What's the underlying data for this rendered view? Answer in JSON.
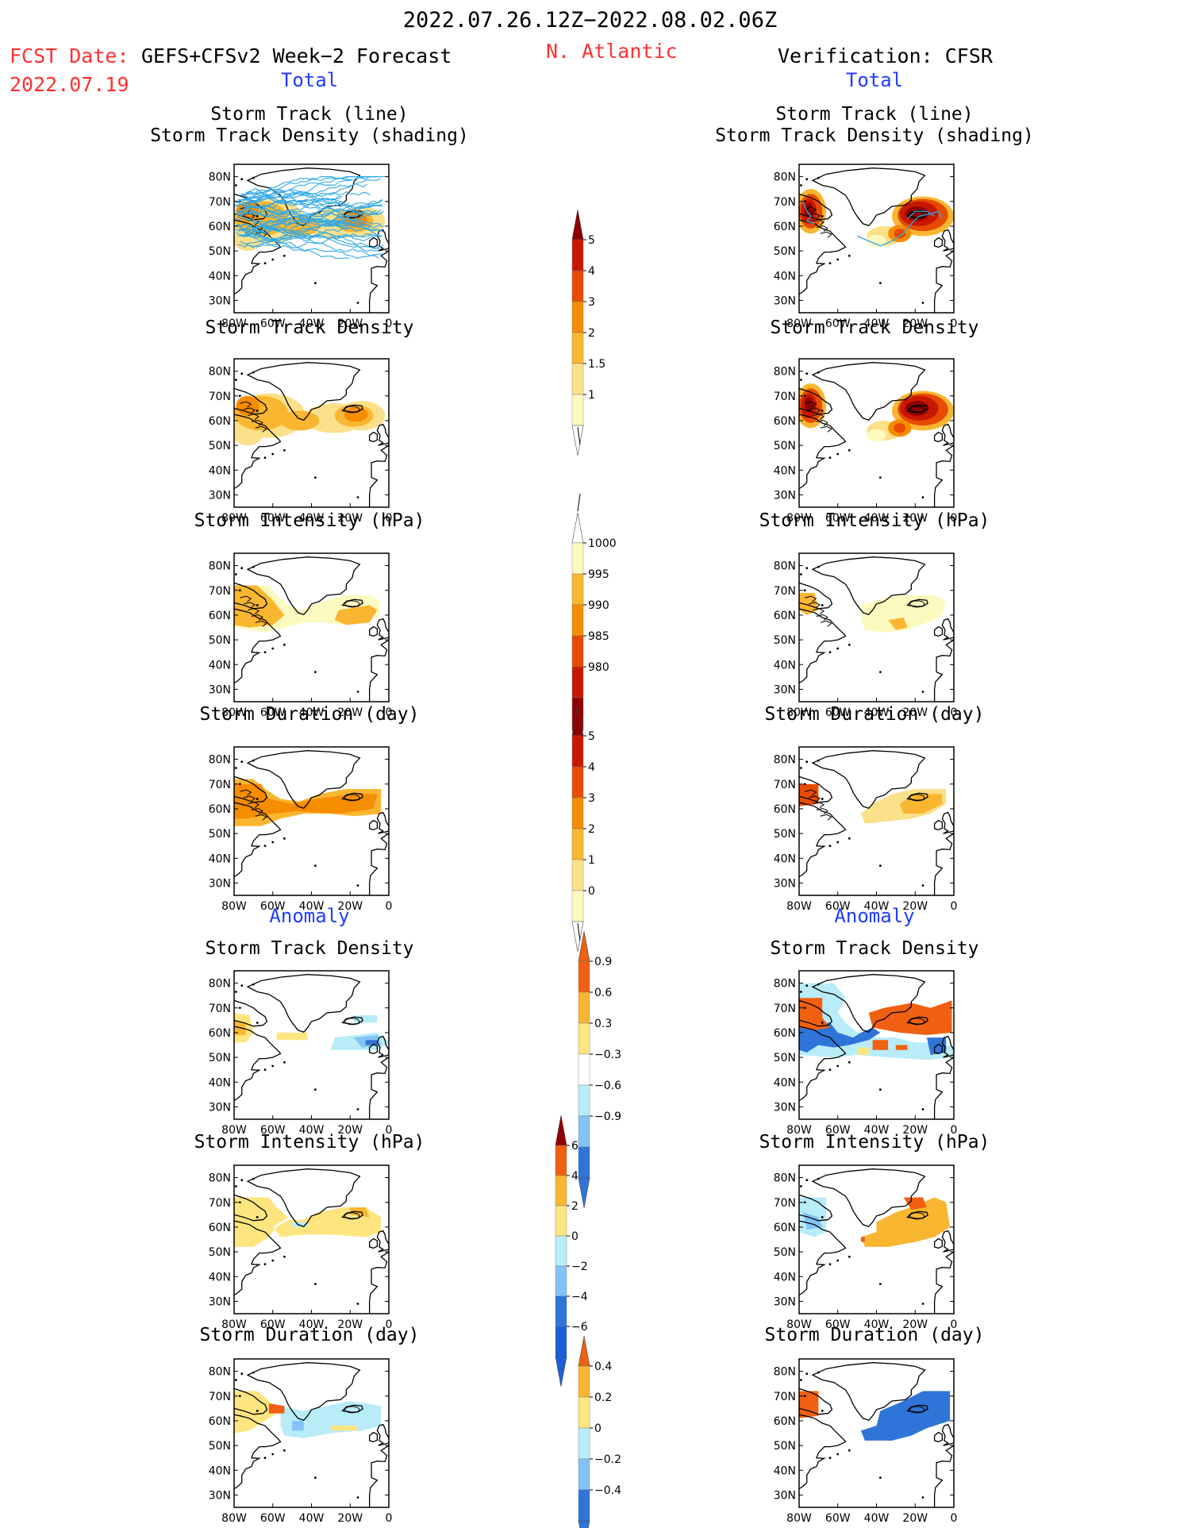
{
  "header": {
    "period": "2022.07.26.12Z−2022.08.02.06Z",
    "fcst_label": "FCST Date:",
    "fcst_model": "GEFS+CFSv2 Week−2 Forecast",
    "fcst_date": "2022.07.19",
    "region": "N. Atlantic",
    "verification": "Verification: CFSR",
    "total_left": "Total",
    "total_right": "Total",
    "anomaly_left": "Anomaly",
    "anomaly_right": "Anomaly"
  },
  "panel_titles": {
    "track_line": "Storm Track (line)",
    "track_shading": "Storm Track Density (shading)",
    "density": "Storm Track Density",
    "intensity": "Storm Intensity (hPa)",
    "duration": "Storm Duration (day)"
  },
  "axes": {
    "lat_ticks": [
      "80N",
      "70N",
      "60N",
      "50N",
      "40N",
      "30N"
    ],
    "lon_ticks": [
      "80W",
      "60W",
      "40W",
      "20W",
      "0"
    ]
  },
  "colors": {
    "heat": [
      "#fdfac0",
      "#fbe08a",
      "#f9b630",
      "#f68c00",
      "#e84a00",
      "#c81800",
      "#8e0000"
    ],
    "anom_pos": [
      "#ffe580",
      "#f9b630",
      "#f06010"
    ],
    "anom_neg": [
      "#b7ecf8",
      "#83c3f7",
      "#2f74d8"
    ],
    "track": "#30a8e6"
  },
  "colorbars": {
    "total_density": {
      "labels": [
        "5",
        "4",
        "3",
        "2",
        "1.5",
        "1"
      ]
    },
    "total_intensity": {
      "labels": [
        "1000",
        "995",
        "990",
        "985",
        "980"
      ]
    },
    "total_duration": {
      "labels": [
        "5",
        "4",
        "3",
        "2",
        "1",
        "0"
      ]
    },
    "anom_density": {
      "labels": [
        "0.9",
        "0.6",
        "0.3",
        "−0.3",
        "−0.6",
        "−0.9"
      ]
    },
    "anom_intensity": {
      "labels": [
        "6",
        "4",
        "2",
        "0",
        "−2",
        "−4",
        "−6"
      ]
    },
    "anom_duration": {
      "labels": [
        "0.4",
        "0.2",
        "0",
        "−0.2",
        "−0.4"
      ]
    }
  },
  "chart_data": {
    "type": "heatmap",
    "region": "N. Atlantic",
    "lon_range": [
      -80,
      0
    ],
    "lat_range": [
      25,
      85
    ],
    "panels": [
      {
        "column": "forecast",
        "group": "Total",
        "title": "Storm Track Density (shading)",
        "overlay": "Storm Track (line)"
      },
      {
        "column": "forecast",
        "group": "Total",
        "title": "Storm Track Density"
      },
      {
        "column": "forecast",
        "group": "Total",
        "title": "Storm Intensity (hPa)"
      },
      {
        "column": "forecast",
        "group": "Total",
        "title": "Storm Duration (day)"
      },
      {
        "column": "forecast",
        "group": "Anomaly",
        "title": "Storm Track Density"
      },
      {
        "column": "forecast",
        "group": "Anomaly",
        "title": "Storm Intensity (hPa)"
      },
      {
        "column": "forecast",
        "group": "Anomaly",
        "title": "Storm Duration (day)"
      },
      {
        "column": "verification",
        "group": "Total",
        "title": "Storm Track Density (shading)",
        "overlay": "Storm Track (line)"
      },
      {
        "column": "verification",
        "group": "Total",
        "title": "Storm Track Density"
      },
      {
        "column": "verification",
        "group": "Total",
        "title": "Storm Intensity (hPa)"
      },
      {
        "column": "verification",
        "group": "Total",
        "title": "Storm Duration (day)"
      },
      {
        "column": "verification",
        "group": "Anomaly",
        "title": "Storm Track Density"
      },
      {
        "column": "verification",
        "group": "Anomaly",
        "title": "Storm Intensity (hPa)"
      },
      {
        "column": "verification",
        "group": "Anomaly",
        "title": "Storm Duration (day)"
      }
    ]
  }
}
